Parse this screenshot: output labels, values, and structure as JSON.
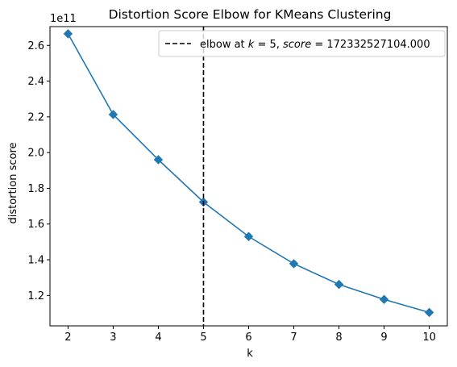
{
  "chart_data": {
    "type": "line",
    "title": "Distortion Score Elbow for KMeans Clustering",
    "xlabel": "k",
    "ylabel": "distortion score",
    "offset_text": "1e11",
    "x": [
      2,
      3,
      4,
      5,
      6,
      7,
      8,
      9,
      10
    ],
    "x_ticks": [
      2,
      3,
      4,
      5,
      6,
      7,
      8,
      9,
      10
    ],
    "xlim": [
      1.6,
      10.4
    ],
    "ylim": [
      1.03,
      2.705
    ],
    "y_unit_scale": 100000000000.0,
    "y_ticks": [
      1.2,
      1.4,
      1.6,
      1.8,
      2.0,
      2.2,
      2.4,
      2.6
    ],
    "y_tick_labels": [
      "1.2",
      "1.4",
      "1.6",
      "1.8",
      "2.0",
      "2.2",
      "2.4",
      "2.6"
    ],
    "series": [
      {
        "values": [
          2.665,
          2.213,
          1.96,
          1.723,
          1.53,
          1.378,
          1.262,
          1.178,
          1.105
        ],
        "color": "#1f77b4",
        "marker": "diamond"
      }
    ],
    "elbow": {
      "x": 5,
      "color": "#000000",
      "style": "dashed",
      "legend_label": "elbow at $k=5$, $score=172332527104.000$"
    },
    "legend_placement": "top-right",
    "grid": false
  }
}
